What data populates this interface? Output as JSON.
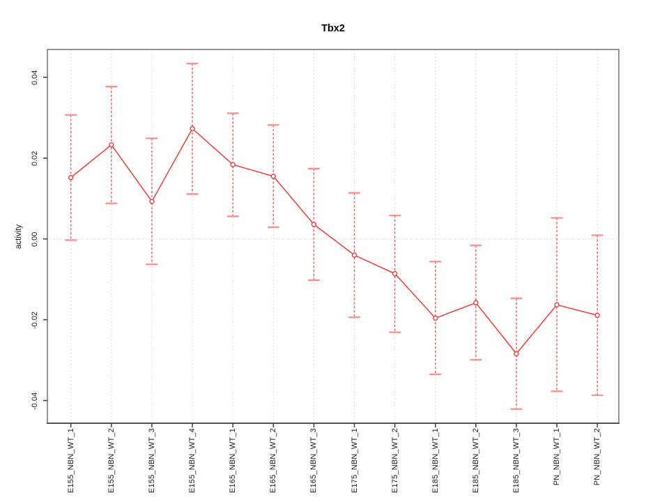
{
  "chart_data": {
    "type": "line",
    "title": "Tbx2",
    "ylabel": "activity",
    "xlabel": "",
    "legend": "none",
    "point_style": "open-circle",
    "error_bar_style": "dashed-vertical-with-caps",
    "grid": {
      "vertical_gridlines": true,
      "horizontal_zero_line": true
    },
    "categories": [
      "E155_NBN_WT_1",
      "E155_NBN_WT_2",
      "E155_NBN_WT_3",
      "E155_NBN_WT_4",
      "E165_NBN_WT_1",
      "E165_NBN_WT_2",
      "E165_NBN_WT_3",
      "E175_NBN_WT_1",
      "E175_NBN_WT_2",
      "E185_NBN_WT_1",
      "E185_NBN_WT_2",
      "E185_NBN_WT_3",
      "PN_NBN_WT_1",
      "PN_NBN_WT_2"
    ],
    "series": [
      {
        "name": "activity",
        "values": [
          0.0152,
          0.0233,
          0.0093,
          0.0273,
          0.0184,
          0.0155,
          0.0036,
          -0.004,
          -0.0086,
          -0.0196,
          -0.0158,
          -0.0284,
          -0.0163,
          -0.0189
        ],
        "error_upper": [
          0.0307,
          0.0377,
          0.0249,
          0.0434,
          0.0311,
          0.0282,
          0.0174,
          0.0114,
          0.0058,
          -0.0056,
          -0.0016,
          -0.0147,
          0.0052,
          0.0009
        ],
        "error_lower": [
          -0.0003,
          0.0088,
          -0.0063,
          0.0111,
          0.0056,
          0.0029,
          -0.0102,
          -0.0194,
          -0.0231,
          -0.0335,
          -0.0299,
          -0.0421,
          -0.0377,
          -0.0387
        ]
      }
    ],
    "yticks": {
      "labels": [
        "0.04",
        "0.02",
        "0.00",
        "-0.02",
        "-0.04"
      ],
      "values": [
        0.04,
        0.02,
        0,
        -0.02,
        -0.04
      ]
    },
    "ylim": [
      -0.0466,
      0.0469
    ],
    "colors": {
      "series": "#f43b3b",
      "error_line": "#f15b5b",
      "error_cap": "#ff9191",
      "gridline": "#dcdcdc",
      "zero_line": "#cfcfcf",
      "box_border": "#959595",
      "axis_tick": "#3a3a3a",
      "text": "#1a1a1a"
    }
  }
}
